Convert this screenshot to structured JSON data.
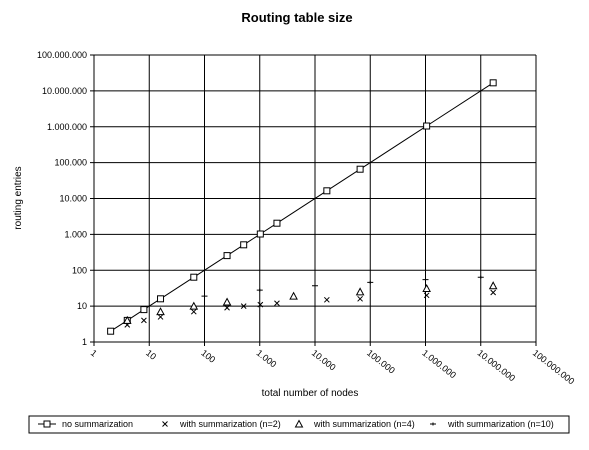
{
  "chart_data": {
    "type": "scatter",
    "title": "Routing table size",
    "xlabel": "total number of nodes",
    "ylabel": "routing entries",
    "xscale": "log",
    "yscale": "log",
    "xlim": [
      1,
      100000000
    ],
    "ylim": [
      1,
      100000000
    ],
    "x_tick_labels": [
      "1",
      "10",
      "100",
      "1.000",
      "10.000",
      "100.000",
      "1.000.000",
      "10.000.000",
      "100.000.000"
    ],
    "y_tick_labels": [
      "1",
      "10",
      "100",
      "1.000",
      "10.000",
      "100.000",
      "1.000.000",
      "10.000.000",
      "100.000.000"
    ],
    "grid": true,
    "legend_position": "bottom",
    "series": [
      {
        "name": "no summarization",
        "marker": "square",
        "line": true,
        "points": [
          [
            2,
            2
          ],
          [
            4,
            4
          ],
          [
            8,
            8
          ],
          [
            16,
            16
          ],
          [
            64,
            64
          ],
          [
            256,
            256
          ],
          [
            512,
            512
          ],
          [
            1024,
            1024
          ],
          [
            2048,
            2048
          ],
          [
            16384,
            16384
          ],
          [
            65536,
            65536
          ],
          [
            1048576,
            1048576
          ],
          [
            16777216,
            16777216
          ]
        ]
      },
      {
        "name": "with summarization (n=2)",
        "marker": "x",
        "line": false,
        "points": [
          [
            4,
            3
          ],
          [
            8,
            4
          ],
          [
            16,
            5
          ],
          [
            64,
            7
          ],
          [
            256,
            9
          ],
          [
            512,
            10
          ],
          [
            1024,
            11
          ],
          [
            2048,
            12
          ],
          [
            16384,
            15
          ],
          [
            65536,
            16
          ],
          [
            1048576,
            20
          ],
          [
            16777216,
            24
          ]
        ]
      },
      {
        "name": "with summarization (n=4)",
        "marker": "triangle",
        "line": false,
        "points": [
          [
            4,
            4
          ],
          [
            16,
            7
          ],
          [
            64,
            10
          ],
          [
            256,
            13
          ],
          [
            4096,
            19
          ],
          [
            65536,
            25
          ],
          [
            1048576,
            31
          ],
          [
            16777216,
            37
          ]
        ]
      },
      {
        "name": "with summarization (n=10)",
        "marker": "plus",
        "line": false,
        "points": [
          [
            100,
            19
          ],
          [
            1000,
            28
          ],
          [
            10000,
            37
          ],
          [
            100000,
            46
          ],
          [
            1000000,
            55
          ],
          [
            10000000,
            64
          ]
        ]
      }
    ]
  }
}
